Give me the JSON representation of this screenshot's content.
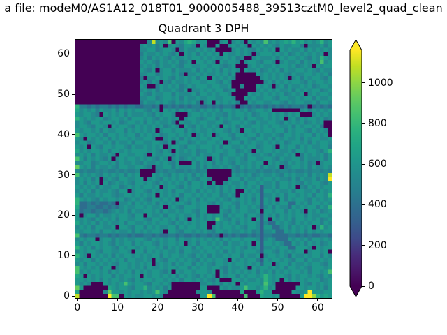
{
  "figure": {
    "suptitle": "a file: modeM0/AS1A12_018T01_9000005488_39513cztM0_level2_quad_clean",
    "background": "#ffffff",
    "text_color": "#000000"
  },
  "axes": {
    "title": "Quadrant 3 DPH",
    "xticks": [
      0,
      10,
      20,
      30,
      40,
      50,
      60
    ],
    "yticks": [
      0,
      10,
      20,
      30,
      40,
      50,
      60
    ]
  },
  "colorbar": {
    "ticks": [
      0,
      200,
      400,
      600,
      800,
      1000
    ],
    "vmin": 0,
    "vmax": 1160,
    "extend": "both",
    "colormap": "viridis"
  },
  "chart_data": {
    "type": "heatmap",
    "title": "Quadrant 3 DPH",
    "grid_size": [
      64,
      64
    ],
    "xlim": [
      0,
      64
    ],
    "ylim": [
      0,
      64
    ],
    "value_encoding": "each hex char 0-f is a level; counts value = level/15 * 1160",
    "notable_features": {
      "dead_module": "rows 48-63, cols 0-15 (top-left block) uniformly ~0 counts",
      "typical_counts": "450-650 (teal)",
      "hot_pixels": "bright yellow-green pixels up to ~1160 along detector edges",
      "module_gaps": "darker seam lines every 16 pixels"
    },
    "palette_viridis": [
      "#440154",
      "#481769",
      "#472d7b",
      "#3e4989",
      "#355e8d",
      "#2e6d8e",
      "#277e8e",
      "#238a8d",
      "#1f988b",
      "#21a585",
      "#2db27d",
      "#46c06f",
      "#65cb5e",
      "#90d743",
      "#c2df23",
      "#fde725"
    ],
    "rows_top_to_bottom": [
      [
        "0000000000000000",
        "007e787b0879a978",
        "800078078708787b",
        "787898a897878a78"
      ],
      [
        "0000000000000000",
        "7878680787688708",
        "7008007878708787",
        "8768778860777868"
      ],
      [
        "0000000000000000",
        "7788678870687787",
        "8780000787876878",
        "7808787786878787"
      ],
      [
        "0000000000000000",
        "6877878768087868",
        "7878087787870788",
        "8787867878787807"
      ],
      [
        "0000000000000000",
        "7868787687787887",
        "8787787867007877",
        "7868788787687a87"
      ],
      [
        "0000000000000000",
        "8787687878678088",
        "7870878870788768",
        "8707877868787b78"
      ],
      [
        "0000000000000000",
        "7878687787688778",
        "8788767800078787",
        "7878878678708788"
      ],
      [
        "0000000000000000",
        "8768078868777868",
        "7878687870877867",
        "8786877887876877"
      ],
      [
        "0000000000000000",
        "7788678878607787",
        "8778786800000878",
        "7878768778878786"
      ],
      [
        "0000000000000000",
        "6077878768787868",
        "8087878700000078",
        "7878707868788768"
      ],
      [
        "0000000000000000",
        "7868707687787887",
        "7887687000000007",
        "8687878876878878"
      ],
      [
        "0000000000000000",
        "8700687878678788",
        "8788778007000878",
        "7078687787867887"
      ],
      [
        "0000000000000000",
        "7878687787680778",
        "7878867800000787",
        "8787786878788678"
      ],
      [
        "0000000000000000",
        "8768778868777868",
        "8787887000087878",
        "7878678780787887"
      ],
      [
        "0000000000000000",
        "7788678878687787",
        "7887788700878778",
        "8768877878868778"
      ],
      [
        "0000000000000000",
        "6877878768787860",
        "7808787860087887",
        "7887687887786887"
      ],
      [
        "a665656656565665",
        "5665605656565665",
        "5656566505656565",
        "6565656656056565"
      ],
      [
        "9787868778687878",
        "8768708786878768",
        "7878688787867887",
        "8000000078687878"
      ],
      [
        "8788760878786877",
        "7876878870007887",
        "8787768788786788",
        "7878687800078787"
      ],
      [
        "a878788678878688",
        "8787687878078876",
        "7886878778688778",
        "7878078687887867"
      ],
      [
        "7876887887867887",
        "8687877860877878",
        "8778867887876877",
        "8876878786787800"
      ],
      [
        "7887688708788768",
        "7878786787087687",
        "8787087868778878",
        "7887786878878600"
      ],
      [
        "8788786877886878",
        "7878078878868787",
        "7878876870887878",
        "8788687887687870"
      ],
      [
        "b878878688787886",
        "8787867887878078",
        "7807887688788687",
        "7876887878868780"
      ],
      [
        "8708787868788787",
        "7887007878687878",
        "8788788678876887",
        "8687877868788778"
      ],
      [
        "7886788786877868",
        "8778876807886787",
        "7887807886878778",
        "7878678878687887"
      ],
      [
        "8780876887887687",
        "7878780788768878",
        "8878688778788678",
        "8708788687877886"
      ],
      [
        "9787887868878788",
        "8878768708787867",
        "7878878867870878",
        "878778688788768a"
      ],
      [
        "7878687787088778",
        "8708778868777868",
        "7788678878687787",
        "6877878068787868"
      ],
      [
        "b868787680787887",
        "8787687078678788",
        "7078687787688778",
        "8768778868777868"
      ],
      [
        "7788678878687787",
        "6877878768000868",
        "7868787687787880",
        "8787687878670788"
      ],
      [
        "c878687787688778",
        "8760778868777868",
        "6877878768787868",
        "7780678878687787"
      ],
      [
        "7676676766767667",
        "0000676776676767",
        "7000000767677676",
        "6767767667677676"
      ],
      [
        "b787876878786878",
        "0008787687878687",
        "8000000878786787",
        "787687877868787e"
      ],
      [
        "7878680787688778",
        "8078768787868768",
        "8700007886877878",
        "878776868778687f"
      ],
      [
        "7868780867878768",
        "8787687878786887",
        "8080078778688787",
        "7868878768788768"
      ],
      [
        "8787868778867878",
        "7887807887687887",
        "8778687878787847",
        "7868878076878788"
      ],
      [
        "7878687787688078",
        "8768787868877868",
        "7878687800878748",
        "8787786887786878"
      ],
      [
        "8687787887678878",
        "7878087878688787",
        "8788678708787847",
        "787868878786887a"
      ],
      [
        "a878768788786787",
        "8768878780787868",
        "7887876878786848",
        "7808687887687878"
      ],
      [
        "a556565565077868",
        "7878687878876878",
        "8768788768787848",
        "7878855878688787"
      ],
      [
        "9556655656578778",
        "8787780787688878",
        "8000787868878747",
        "868775878788687a"
      ],
      [
        "8566566567878687",
        "7887868778788768",
        "8000876878877808",
        "8788687870878678"
      ],
      [
        "8078868778788768",
        "8087786887877868",
        "7878868788688748",
        "7868787886877887"
      ],
      [
        "8787687878688778",
        "8768878786870878",
        "787b876878780848",
        "0878786887878678"
      ],
      [
        "9787868787786887",
        "7878788768787878",
        "8008787868788747",
        "5587876878788687"
      ],
      [
        "7878688778088768",
        "8687877886878878",
        "8078788787688748",
        "8557868787807a78"
      ],
      [
        "8788786887877868",
        "7878870887688787",
        "8768878778786747",
        "7855878786878788"
      ],
      [
        "b656656656566565",
        "5665655665655656",
        "6565056565565646",
        "6555566565655665"
      ],
      [
        "7878807886878778",
        "8768787886877878",
        "7878687887888747",
        "8755587878688787"
      ],
      [
        "8687887876878868",
        "7887687887807868",
        "8787868778780848",
        "8787558786878678"
      ],
      [
        "a878687887687887",
        "8788786878788687",
        "8878788787687847",
        "7878855888708788"
      ],
      [
        "7878876887788708",
        "8687878778688778",
        "7887868787888748",
        "8768787880788780"
      ],
      [
        "a870878786878878",
        "7878868788787687",
        "8687787886877807",
        "8878758778788687"
      ],
      [
        "8788687878786887",
        "7870876887878768",
        "7878870878788648",
        "7887876886877878"
      ],
      [
        "7868878787688787",
        "8780787868788687",
        "8768878788787858",
        "8078868778788768"
      ],
      [
        "b878786880788787",
        "8687787887886878",
        "8788768778708788",
        "7878688787688878"
      ],
      [
        "b787887868787868",
        "7878876808788788",
        "8780868787878687",
        "868787887868878b"
      ],
      [
        "9808787886878878",
        "0878878786878768",
        "787087886878878a",
        "8788768788787687"
      ],
      [
        "8878786878878768",
        "7887887878688787",
        "876800088787787a",
        "8780868787888678"
      ],
      [
        "878700087878b878",
        "8768878700000007",
        "787868780878887b",
        "8700000087687878"
      ],
      [
        "c800000098788768",
        "8a78786800000008",
        "8000878778b8878a",
        "7800000887887868"
      ],
      [
        "90000007c8878788",
        "7878b87000000078",
        "87000000090008a8",
        "8000008778f88788"
      ],
      [
        "e0000000fbb08787",
        "7887870000000008",
        "8fb0000000b00098",
        "878000008ffda898"
      ]
    ]
  }
}
